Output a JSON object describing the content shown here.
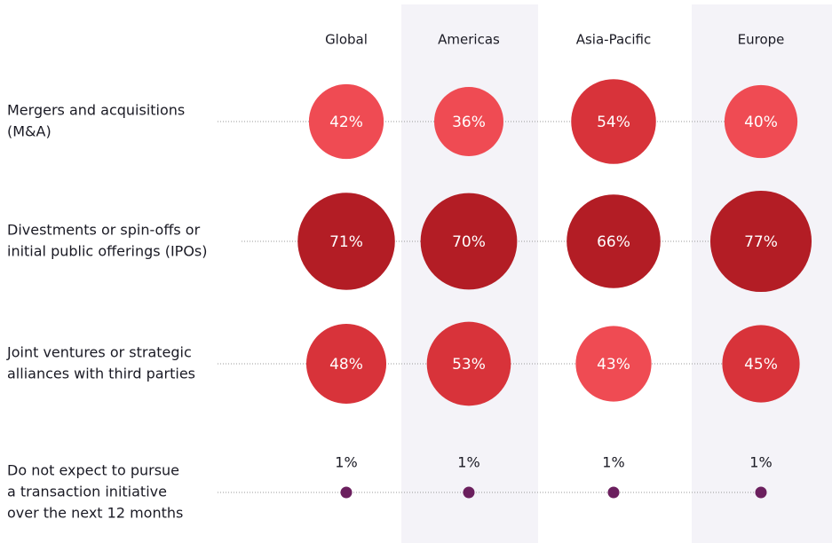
{
  "chart_data": {
    "type": "bubble",
    "categories": [
      [
        "Mergers and acquisitions",
        "(M&A)"
      ],
      [
        "Divestments or spin-offs or",
        "initial public offerings (IPOs)"
      ],
      [
        "Joint ventures or strategic",
        "alliances with third parties"
      ],
      [
        "Do not expect to pursue",
        "a transaction initiative",
        "over the next 12 months"
      ]
    ],
    "series": [
      {
        "name": "Global",
        "values": [
          42,
          71,
          48,
          1
        ],
        "value_labels": [
          "42%",
          "71%",
          "48%",
          "1%"
        ],
        "colors": [
          "#ef4b53",
          "#b31d25",
          "#d8333a",
          "#6b1f5e"
        ]
      },
      {
        "name": "Americas",
        "values": [
          36,
          70,
          53,
          1
        ],
        "value_labels": [
          "36%",
          "70%",
          "53%",
          "1%"
        ],
        "colors": [
          "#ef4b53",
          "#b31d25",
          "#d8333a",
          "#6b1f5e"
        ]
      },
      {
        "name": "Asia-Pacific",
        "values": [
          54,
          66,
          43,
          1
        ],
        "value_labels": [
          "54%",
          "66%",
          "43%",
          "1%"
        ],
        "colors": [
          "#d8333a",
          "#b31d25",
          "#ef4b53",
          "#6b1f5e"
        ]
      },
      {
        "name": "Europe",
        "values": [
          40,
          77,
          45,
          1
        ],
        "value_labels": [
          "40%",
          "77%",
          "45%",
          "1%"
        ],
        "colors": [
          "#ef4b53",
          "#b31d25",
          "#d8333a",
          "#6b1f5e"
        ]
      }
    ]
  }
}
